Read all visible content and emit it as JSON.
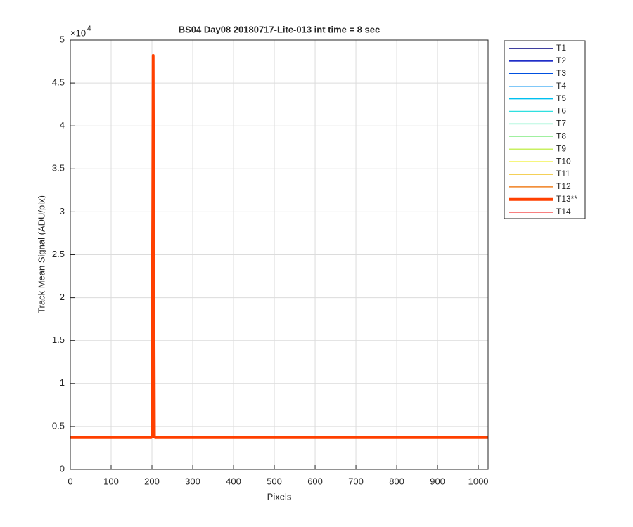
{
  "chart_data": {
    "type": "line",
    "title": "BS04 Day08 20180717-Lite-013 int time = 8 sec",
    "x_label": "Pixels",
    "y_label": "Track Mean Signal (ADU/pix)",
    "y_multiplier": {
      "base": "×10",
      "power": "4"
    },
    "x": [
      0,
      198,
      200,
      202,
      203,
      204,
      206,
      208,
      1024
    ],
    "series": [
      {
        "name": "T1",
        "color": "#000080",
        "linewidth": 1.5,
        "values": [
          3700,
          3700,
          3700,
          3700,
          3700,
          3700,
          3700,
          3700,
          3700
        ]
      },
      {
        "name": "T2",
        "color": "#0010c0",
        "linewidth": 1.5,
        "values": [
          3700,
          3700,
          3700,
          3700,
          3700,
          3700,
          3700,
          3700,
          3700
        ]
      },
      {
        "name": "T3",
        "color": "#0050e0",
        "linewidth": 1.5,
        "values": [
          3700,
          3700,
          3700,
          3700,
          3700,
          3700,
          3700,
          3700,
          3700
        ]
      },
      {
        "name": "T4",
        "color": "#0090f0",
        "linewidth": 1.5,
        "values": [
          3700,
          3700,
          3700,
          3700,
          3700,
          3700,
          3700,
          3700,
          3700
        ]
      },
      {
        "name": "T5",
        "color": "#00c0f0",
        "linewidth": 1.5,
        "values": [
          3700,
          3700,
          3700,
          3700,
          3700,
          3700,
          3700,
          3700,
          3700
        ]
      },
      {
        "name": "T6",
        "color": "#30e0e0",
        "linewidth": 1.5,
        "values": [
          3700,
          3700,
          3700,
          3700,
          3700,
          3700,
          3700,
          3700,
          3700
        ]
      },
      {
        "name": "T7",
        "color": "#70f0c0",
        "linewidth": 1.5,
        "values": [
          3700,
          3700,
          3700,
          3700,
          3700,
          3700,
          3700,
          3700,
          3700
        ]
      },
      {
        "name": "T8",
        "color": "#a0f0a0",
        "linewidth": 1.5,
        "values": [
          3700,
          3700,
          3700,
          3700,
          3700,
          3700,
          3700,
          3700,
          3700
        ]
      },
      {
        "name": "T9",
        "color": "#c8f060",
        "linewidth": 1.5,
        "values": [
          3700,
          3700,
          3700,
          3700,
          3700,
          3700,
          3700,
          3700,
          3700
        ]
      },
      {
        "name": "T10",
        "color": "#f0f030",
        "linewidth": 1.5,
        "values": [
          3700,
          3700,
          3700,
          3700,
          3700,
          3700,
          3700,
          3700,
          3700
        ]
      },
      {
        "name": "T11",
        "color": "#f0c020",
        "linewidth": 1.5,
        "values": [
          3700,
          3700,
          3700,
          3700,
          3700,
          3700,
          3700,
          3700,
          3700
        ]
      },
      {
        "name": "T12",
        "color": "#f08020",
        "linewidth": 1.5,
        "values": [
          3700,
          3700,
          3700,
          3700,
          3700,
          3700,
          3700,
          3700,
          3700
        ]
      },
      {
        "name": "T14",
        "color": "#f00000",
        "linewidth": 1.5,
        "values": [
          3700,
          3700,
          3700,
          3700,
          3700,
          3700,
          3700,
          3700,
          3700
        ]
      },
      {
        "name": "T13**",
        "color": "#ff4000",
        "linewidth": 4,
        "values": [
          3700,
          3700,
          3800,
          30000,
          48200,
          30000,
          3900,
          3700,
          3700
        ]
      }
    ],
    "legend_order": [
      0,
      1,
      2,
      3,
      4,
      5,
      6,
      7,
      8,
      9,
      10,
      11,
      13,
      12
    ],
    "xlim": [
      0,
      1024
    ],
    "ylim": [
      0,
      50000
    ],
    "xticks": [
      0,
      100,
      200,
      300,
      400,
      500,
      600,
      700,
      800,
      900,
      1000
    ],
    "yticks": [
      0,
      {
        "value": 5000,
        "label": "0.5"
      },
      {
        "value": 10000,
        "label": "1"
      },
      {
        "value": 15000,
        "label": "1.5"
      },
      {
        "value": 20000,
        "label": "2"
      },
      {
        "value": 25000,
        "label": "2.5"
      },
      {
        "value": 30000,
        "label": "3"
      },
      {
        "value": 35000,
        "label": "3.5"
      },
      {
        "value": 40000,
        "label": "4"
      },
      {
        "value": 45000,
        "label": "4.5"
      },
      {
        "value": 50000,
        "label": "5"
      }
    ],
    "grid": true,
    "legend": "outside-right"
  }
}
